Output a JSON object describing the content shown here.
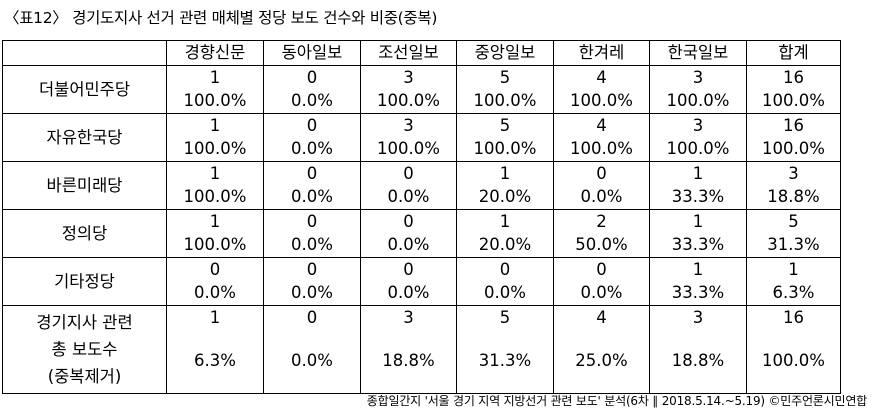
{
  "title": "〈표12〉 경기도지사 선거 관련 매체별 정당 보도 건수와 비중(중복)",
  "columns": [
    "경향신문",
    "동아일보",
    "조선일보",
    "중앙일보",
    "한겨레",
    "한국일보",
    "합계"
  ],
  "rows": [
    {
      "party": "더불어민주당",
      "counts": [
        "1",
        "0",
        "3",
        "5",
        "4",
        "3",
        "16"
      ],
      "pcts": [
        "100.0%",
        "0.0%",
        "100.0%",
        "100.0%",
        "100.0%",
        "100.0%",
        "100.0%"
      ]
    },
    {
      "party": "자유한국당",
      "counts": [
        "1",
        "0",
        "3",
        "5",
        "4",
        "3",
        "16"
      ],
      "pcts": [
        "100.0%",
        "0.0%",
        "100.0%",
        "100.0%",
        "100.0%",
        "100.0%",
        "100.0%"
      ]
    },
    {
      "party": "바른미래당",
      "counts": [
        "1",
        "0",
        "0",
        "1",
        "0",
        "1",
        "3"
      ],
      "pcts": [
        "100.0%",
        "0.0%",
        "0.0%",
        "20.0%",
        "0.0%",
        "33.3%",
        "18.8%"
      ]
    },
    {
      "party": "정의당",
      "counts": [
        "1",
        "0",
        "0",
        "1",
        "2",
        "1",
        "5"
      ],
      "pcts": [
        "100.0%",
        "0.0%",
        "0.0%",
        "20.0%",
        "50.0%",
        "33.3%",
        "31.3%"
      ]
    },
    {
      "party": "기타정당",
      "counts": [
        "0",
        "0",
        "0",
        "0",
        "0",
        "1",
        "1"
      ],
      "pcts": [
        "0.0%",
        "0.0%",
        "0.0%",
        "0.0%",
        "0.0%",
        "33.3%",
        "6.3%"
      ]
    }
  ],
  "total": {
    "label_lines": [
      "경기지사 관련",
      "총 보도수",
      "(중복제거)"
    ],
    "counts": [
      "1",
      "0",
      "3",
      "5",
      "4",
      "3",
      "16"
    ],
    "pcts": [
      "6.3%",
      "0.0%",
      "18.8%",
      "31.3%",
      "25.0%",
      "18.8%",
      "100.0%"
    ]
  },
  "source": "종합일간지 '서울 경기 지역 지방선거 관련 보도' 분석(6차 ∥ 2018.5.14.~5.19) ©민주언론시민연합"
}
